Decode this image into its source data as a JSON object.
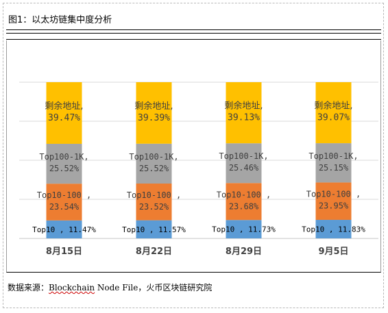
{
  "header": {
    "title": "图1：以太坊链集中度分析"
  },
  "footer": {
    "prefix": "数据来源：",
    "source_underlined": "Blockchain",
    "source_rest": " Node File，",
    "source_cn": "火币区块链研究院"
  },
  "chart_data": {
    "type": "bar",
    "stacked": true,
    "categories": [
      "8月15日",
      "8月22日",
      "8月29日",
      "9月5日"
    ],
    "series": [
      {
        "name": "Top10",
        "color": "#5b9bd5",
        "values": [
          11.47,
          11.57,
          11.73,
          11.83
        ],
        "labels": [
          "Top10 , 11.47%",
          "Top10 , 11.57%",
          "Top10 , 11.73%",
          "Top10 , 11.83%"
        ]
      },
      {
        "name": "Top10-100",
        "color": "#ed7d31",
        "values": [
          23.54,
          23.52,
          23.68,
          23.95
        ],
        "labels": [
          [
            "Top10-100 ,",
            "23.54%"
          ],
          [
            "Top10-100 ,",
            "23.52%"
          ],
          [
            "Top10-100 ,",
            "23.68%"
          ],
          [
            "Top10-100 ,",
            "23.95%"
          ]
        ]
      },
      {
        "name": "Top100-1K",
        "color": "#a5a5a5",
        "values": [
          25.52,
          25.52,
          25.46,
          25.15
        ],
        "labels": [
          [
            "Top100-1K,",
            "25.52%"
          ],
          [
            "Top100-1K,",
            "25.52%"
          ],
          [
            "Top100-1K,",
            "25.46%"
          ],
          [
            "Top100-1K,",
            "25.15%"
          ]
        ]
      },
      {
        "name": "剩余地址",
        "color": "#ffc000",
        "values": [
          39.47,
          39.39,
          39.13,
          39.07
        ],
        "labels": [
          [
            "剩余地址,",
            "39.47%"
          ],
          [
            "剩余地址,",
            "39.39%"
          ],
          [
            "剩余地址,",
            "39.13%"
          ],
          [
            "剩余地址,",
            "39.07%"
          ]
        ]
      }
    ],
    "ylim": [
      0,
      100
    ],
    "grid": true,
    "legend": "none"
  }
}
